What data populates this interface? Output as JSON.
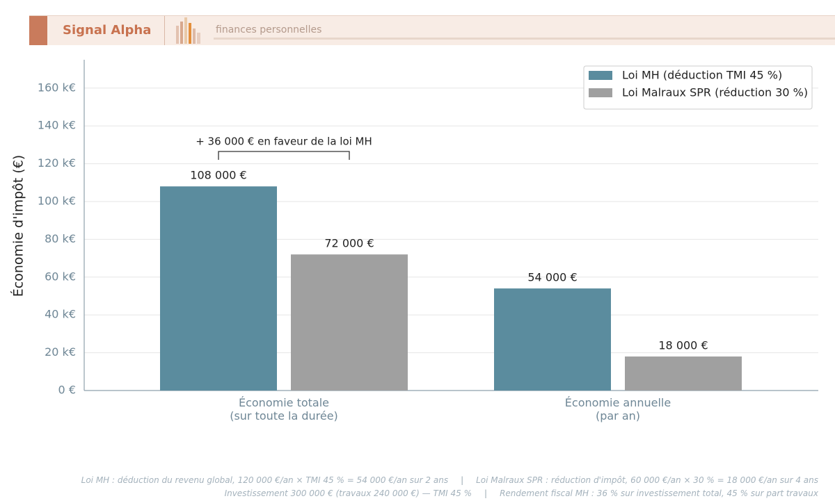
{
  "header": {
    "brand": "Signal Alpha",
    "tagline": "finances personnelles"
  },
  "chart_data": {
    "type": "bar",
    "ylabel": "Économie d'impôt (€)",
    "categories": [
      "Économie totale\n(sur toute la durée)",
      "Économie annuelle\n(par an)"
    ],
    "series": [
      {
        "name": "Loi MH (déduction TMI 45 %)",
        "color": "#5b8c9e",
        "values": [
          108000,
          54000
        ],
        "value_labels": [
          "108 000 €",
          "54 000 €"
        ]
      },
      {
        "name": "Loi Malraux SPR (réduction 30 %)",
        "color": "#a0a0a0",
        "values": [
          72000,
          18000
        ],
        "value_labels": [
          "72 000 €",
          "18 000 €"
        ]
      }
    ],
    "ylim": [
      0,
      175000
    ],
    "yticks": [
      {
        "value": 0,
        "label": "0 €"
      },
      {
        "value": 20000,
        "label": "20 k€"
      },
      {
        "value": 40000,
        "label": "40 k€"
      },
      {
        "value": 60000,
        "label": "60 k€"
      },
      {
        "value": 80000,
        "label": "80 k€"
      },
      {
        "value": 100000,
        "label": "100 k€"
      },
      {
        "value": 120000,
        "label": "120 k€"
      },
      {
        "value": 140000,
        "label": "140 k€"
      },
      {
        "value": 160000,
        "label": "160 k€"
      }
    ],
    "grid": true,
    "legend": "upper right",
    "annotation": "+ 36 000 € en faveur de la loi MH"
  },
  "footnotes": [
    [
      "Loi MH : déduction du revenu global, 120 000 €/an × TMI 45 % = 54 000 €/an sur 2 ans",
      "Loi Malraux SPR : réduction d'impôt, 60 000 €/an × 30 % = 18 000 €/an sur 4 ans"
    ],
    [
      "Investissement 300 000 € (travaux 240 000 €) — TMI 45 %",
      "Rendement fiscal MH : 36 % sur investissement total, 45 % sur part travaux"
    ]
  ]
}
